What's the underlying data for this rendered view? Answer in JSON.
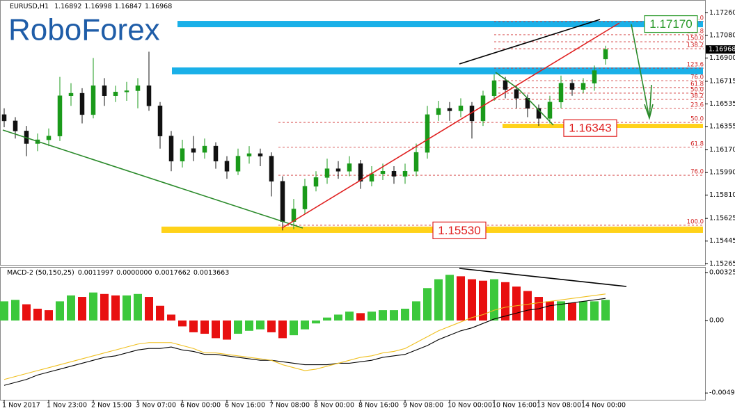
{
  "chart_data": [
    {
      "type": "candlestick",
      "title": "EURUSD,H1",
      "watermark": "RoboForex",
      "ylim": [
        1.1525,
        1.1735
      ],
      "yticks": [
        {
          "value": 1.1726,
          "label": "1.17260"
        },
        {
          "value": 1.1708,
          "label": "1.17080"
        },
        {
          "value": 1.169,
          "label": "1.16900"
        },
        1.16715,
        1.16535,
        1.16355,
        {
          "value": 1.1617,
          "label": "1.16170"
        },
        {
          "value": 1.1599,
          "label": "1.15990"
        },
        {
          "value": 1.1581,
          "label": "1.15810"
        },
        1.15625,
        1.15445,
        1.15265
      ],
      "grid": false,
      "up_color": "#1a9a1a",
      "down_color": "#111111",
      "open": [
        1.1645,
        1.164,
        1.1632,
        1.1622,
        1.1625,
        1.1628,
        1.166,
        1.1662,
        1.1645,
        1.1668,
        1.166,
        1.1663,
        1.1664,
        1.1668,
        1.1652,
        1.1628,
        1.1608,
        1.1618,
        1.1615,
        1.162,
        1.1608,
        1.16,
        1.1612,
        1.1614,
        1.1612,
        1.1592,
        1.156,
        1.157,
        1.1588,
        1.1595,
        1.1602,
        1.16,
        1.1606,
        1.1592,
        1.1598,
        1.16,
        1.1596,
        1.16,
        1.1615,
        1.1645,
        1.165,
        1.1648,
        1.1652,
        1.164,
        1.166,
        1.1672,
        1.1665,
        1.1658,
        1.165,
        1.1642,
        1.1655,
        1.167,
        1.1665,
        1.167,
        1.16892
      ],
      "high": [
        1.165,
        1.1643,
        1.1636,
        1.163,
        1.1634,
        1.1675,
        1.167,
        1.1666,
        1.169,
        1.1674,
        1.1668,
        1.1671,
        1.1674,
        1.1695,
        1.1655,
        1.1632,
        1.1625,
        1.1628,
        1.1626,
        1.1623,
        1.1612,
        1.1618,
        1.162,
        1.1618,
        1.1615,
        1.1596,
        1.1578,
        1.1594,
        1.16,
        1.161,
        1.1608,
        1.1612,
        1.1609,
        1.1604,
        1.1606,
        1.1604,
        1.1606,
        1.1622,
        1.1652,
        1.1656,
        1.1655,
        1.1658,
        1.1655,
        1.1664,
        1.1677,
        1.1675,
        1.1668,
        1.1661,
        1.1653,
        1.166,
        1.1676,
        1.1673,
        1.1674,
        1.1684,
        1.16998
      ],
      "low": [
        1.1635,
        1.1626,
        1.1612,
        1.1616,
        1.162,
        1.1624,
        1.1652,
        1.1638,
        1.1642,
        1.1652,
        1.1655,
        1.1656,
        1.165,
        1.1648,
        1.1618,
        1.16,
        1.1603,
        1.1608,
        1.161,
        1.1602,
        1.1594,
        1.1597,
        1.1606,
        1.1604,
        1.158,
        1.1553,
        1.1554,
        1.1566,
        1.1584,
        1.159,
        1.1594,
        1.1596,
        1.1586,
        1.1588,
        1.1593,
        1.159,
        1.159,
        1.1596,
        1.161,
        1.164,
        1.164,
        1.1643,
        1.1626,
        1.1636,
        1.1656,
        1.1658,
        1.165,
        1.1643,
        1.1636,
        1.1638,
        1.165,
        1.166,
        1.1662,
        1.1664,
        1.16847
      ],
      "close": [
        1.164,
        1.1632,
        1.1622,
        1.1625,
        1.1628,
        1.166,
        1.1662,
        1.1645,
        1.1668,
        1.166,
        1.1663,
        1.1664,
        1.1668,
        1.1652,
        1.1628,
        1.1608,
        1.1618,
        1.1615,
        1.162,
        1.1608,
        1.16,
        1.1612,
        1.1614,
        1.1612,
        1.1592,
        1.156,
        1.157,
        1.1588,
        1.1595,
        1.1602,
        1.16,
        1.1606,
        1.1592,
        1.1598,
        1.16,
        1.1596,
        1.16,
        1.1615,
        1.1645,
        1.165,
        1.1648,
        1.1652,
        1.164,
        1.166,
        1.1672,
        1.1665,
        1.1658,
        1.165,
        1.1642,
        1.1655,
        1.167,
        1.1665,
        1.167,
        1.168,
        1.16968
      ],
      "zones": [
        {
          "low": 1.17145,
          "high": 1.17195,
          "color": "#1ab0e8"
        },
        {
          "low": 1.1677,
          "high": 1.16825,
          "color": "#1ab0e8"
        },
        {
          "low": 1.16344,
          "high": 1.16377,
          "color": "#ffd21a"
        },
        {
          "low": 1.1551,
          "high": 1.1556,
          "color": "#ffd21a"
        }
      ],
      "fib_upper": [
        {
          "label": "0.0",
          "price": 1.1719
        },
        {
          "label": "161.8",
          "price": 1.17085
        },
        {
          "label": "150.0",
          "price": 1.17029
        },
        {
          "label": "138.2",
          "price": 1.16974
        },
        {
          "label": "123.6",
          "price": 1.16819
        },
        {
          "label": "76.0",
          "price": 1.1672
        },
        {
          "label": "61.8",
          "price": 1.16665
        },
        {
          "label": "50.0",
          "price": 1.16621
        },
        {
          "label": "38.2",
          "price": 1.16571
        },
        {
          "label": "23.6",
          "price": 1.16499
        }
      ],
      "fib_lower": [
        {
          "label": "50.0",
          "price": 1.16388
        },
        {
          "label": "61.8",
          "price": 1.1619
        },
        {
          "label": "76.0",
          "price": 1.15968
        },
        {
          "label": "100.0",
          "price": 1.15571
        }
      ],
      "annotations": [
        {
          "value": 1.1717,
          "label": "1.17170",
          "color": "#2a9a2a"
        },
        {
          "value": 1.16343,
          "color": "#e02020"
        },
        {
          "value": 1.1553,
          "label": "1.15530",
          "color": "#e02020"
        }
      ]
    },
    {
      "type": "macd",
      "title": "MACD-2 (50,150,25)",
      "readouts": [
        0.0011997,
        {
          "value": 0,
          "label": "0.0000000"
        },
        0.0017662,
        0.0013663
      ],
      "ylim": [
        -0.00538,
        0.00363
      ],
      "yticks": [
        0.003254,
        {
          "value": 0,
          "label": "0.00"
        },
        -0.004918
      ],
      "categories": [
        "1 Nov 2017",
        null,
        null,
        null,
        "1 Nov 23:00",
        null,
        null,
        null,
        "2 Nov 15:00",
        null,
        null,
        null,
        "3 Nov 07:00",
        null,
        null,
        null,
        "6 Nov 00:00",
        null,
        null,
        null,
        "6 Nov 16:00",
        null,
        null,
        null,
        "7 Nov 08:00",
        null,
        null,
        null,
        "8 Nov 00:00",
        null,
        null,
        null,
        "8 Nov 16:00",
        null,
        null,
        null,
        "9 Nov 08:00",
        null,
        null,
        null,
        "10 Nov 00:00",
        null,
        null,
        null,
        "10 Nov 16:00",
        null,
        null,
        null,
        "13 Nov 08:00",
        null,
        null,
        null,
        "14 Nov 00:00",
        null,
        null
      ],
      "up_color": "#3cc83c",
      "down_color": "#e81010",
      "values": [
        0.0013,
        0.0014,
        0.0011,
        0.0008,
        0.0007,
        0.0013,
        0.0017,
        0.0016,
        0.0019,
        0.0018,
        0.0017,
        0.0017,
        0.0018,
        0.0016,
        0.001,
        0.0004,
        -0.0004,
        -0.0008,
        -0.0009,
        -0.0012,
        -0.0013,
        -0.0009,
        -0.0007,
        -0.0006,
        -0.0008,
        -0.0012,
        -0.001,
        -0.0006,
        -0.0002,
        0.0002,
        0.0004,
        0.0006,
        0.0005,
        0.0006,
        0.0007,
        0.0007,
        0.0008,
        0.0013,
        0.0022,
        0.0028,
        0.0031,
        0.003,
        0.0028,
        0.0027,
        0.0028,
        0.0026,
        0.0023,
        0.002,
        0.0016,
        0.0013,
        0.0013,
        0.0012,
        0.0013,
        0.0013,
        0.0014
      ],
      "series": [
        {
          "color": "#000000",
          "values": [
            -0.0044,
            -0.0042,
            -0.004,
            -0.0037,
            -0.0035,
            -0.0033,
            -0.0031,
            -0.0029,
            -0.0027,
            -0.0025,
            -0.0024,
            -0.0022,
            -0.002,
            -0.0019,
            -0.0019,
            -0.0018,
            -0.002,
            -0.0021,
            -0.0023,
            -0.0023,
            -0.0024,
            -0.0025,
            -0.0026,
            -0.0027,
            -0.0027,
            -0.0028,
            -0.0029,
            -0.003,
            -0.003,
            -0.003,
            -0.0029,
            -0.0029,
            -0.0028,
            -0.0027,
            -0.0025,
            -0.0024,
            -0.0023,
            -0.002,
            -0.0017,
            -0.0013,
            -0.001,
            -0.0007,
            -0.0005,
            -0.0002,
            0.0001,
            0.0003,
            0.0005,
            0.0007,
            0.0008,
            0.001,
            0.0011,
            0.0012,
            0.0013,
            0.0014,
            0.0015
          ]
        },
        {
          "color": "#f0c020",
          "values": [
            -0.004,
            -0.0038,
            -0.0036,
            -0.0034,
            -0.0032,
            -0.003,
            -0.0028,
            -0.0026,
            -0.0024,
            -0.0022,
            -0.002,
            -0.0018,
            -0.0016,
            -0.0015,
            -0.0015,
            -0.0015,
            -0.0017,
            -0.0019,
            -0.0022,
            -0.0022,
            -0.0023,
            -0.0024,
            -0.0025,
            -0.0026,
            -0.0027,
            -0.003,
            -0.0032,
            -0.0034,
            -0.0033,
            -0.0031,
            -0.0029,
            -0.0027,
            -0.0025,
            -0.0024,
            -0.0022,
            -0.0021,
            -0.0019,
            -0.0015,
            -0.0011,
            -0.0007,
            -0.0004,
            -0.0001,
            0.0002,
            0.0004,
            0.0007,
            0.0009,
            0.001,
            0.0011,
            0.0012,
            0.0013,
            0.0014,
            0.0015,
            0.0016,
            0.0017,
            0.0018
          ]
        }
      ]
    }
  ]
}
